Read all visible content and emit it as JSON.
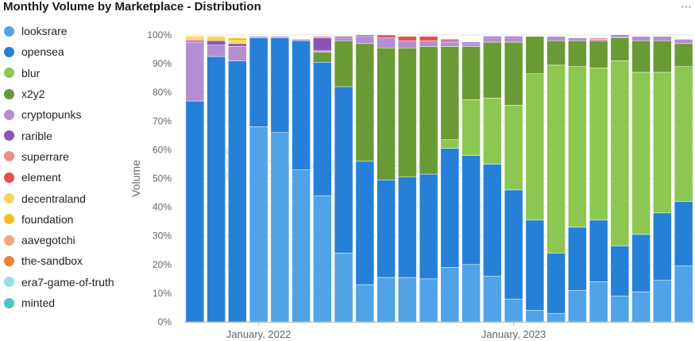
{
  "icons": {
    "more": "more-dots-icon"
  },
  "chart_data": {
    "type": "bar",
    "stacked": true,
    "normalized": true,
    "title": "Monthly Volume by Marketplace - Distribution",
    "ylabel": "Volume",
    "xlabel": "",
    "watermark": "Footprint Analytics",
    "ylim": [
      0,
      100
    ],
    "yticks": [
      "0%",
      "10%",
      "20%",
      "30%",
      "40%",
      "50%",
      "60%",
      "70%",
      "80%",
      "90%",
      "100%"
    ],
    "x_tick_labels": [
      {
        "label": "January, 2022",
        "index": 3
      },
      {
        "label": "January, 2023",
        "index": 15
      }
    ],
    "legend_position": "left",
    "series": [
      {
        "name": "looksrare",
        "color": "#4fa3e6",
        "values": [
          0,
          0,
          0,
          68,
          66,
          53,
          44,
          24,
          13,
          15.5,
          15.5,
          15,
          19,
          20,
          16,
          8,
          4,
          3,
          11,
          14,
          9,
          10.5,
          14.5,
          19.5
        ]
      },
      {
        "name": "opensea",
        "color": "#2680d8",
        "values": [
          77,
          92.5,
          91,
          31,
          33,
          45,
          46.5,
          58,
          43,
          34,
          35,
          36.5,
          41.5,
          38,
          39,
          38,
          31.5,
          21,
          22,
          21.5,
          17.5,
          20,
          23.5,
          22.5
        ]
      },
      {
        "name": "blur",
        "color": "#8cc751",
        "values": [
          0,
          0,
          0,
          0,
          0,
          0,
          0,
          0,
          0,
          0,
          0,
          0,
          3,
          19.5,
          23,
          29.5,
          51,
          65.5,
          56,
          53,
          64.5,
          56.5,
          49,
          47
        ]
      },
      {
        "name": "x2y2",
        "color": "#6a9a35",
        "values": [
          0,
          0,
          0,
          0,
          0,
          0,
          3.5,
          16,
          41,
          46,
          45,
          44.5,
          32.5,
          18.5,
          19.5,
          22,
          13,
          8.5,
          9,
          9.5,
          8,
          11,
          11,
          8
        ]
      },
      {
        "name": "cryptopunks",
        "color": "#b38ed2",
        "values": [
          20.5,
          4,
          5,
          0.5,
          0.5,
          0.5,
          0.5,
          1,
          2.5,
          3.5,
          2.5,
          2,
          1.5,
          1,
          1.5,
          1.5,
          0,
          1.5,
          1,
          0.5,
          0.5,
          1.5,
          1.5,
          1.5
        ]
      },
      {
        "name": "rarible",
        "color": "#8a55b8",
        "values": [
          0.5,
          1.5,
          1,
          0,
          0,
          0,
          4.5,
          0.5,
          0.5,
          0,
          0,
          0,
          0.5,
          0.5,
          0.5,
          0.5,
          0,
          0,
          0,
          0,
          0.5,
          0,
          0,
          0
        ]
      },
      {
        "name": "superrare",
        "color": "#f08c8c",
        "values": [
          0.5,
          0,
          0,
          0,
          0,
          0,
          0.5,
          0,
          0,
          0,
          0,
          0,
          0,
          0,
          0,
          0,
          0,
          0,
          0,
          0.5,
          0,
          0,
          0,
          0
        ]
      },
      {
        "name": "element",
        "color": "#e84c4c",
        "values": [
          0,
          0,
          0,
          0,
          0,
          0,
          0,
          0,
          0,
          1,
          1.5,
          1.5,
          0.5,
          0,
          0,
          0,
          0,
          0,
          0,
          0,
          0,
          0,
          0,
          0
        ]
      },
      {
        "name": "decentraland",
        "color": "#f7d35c",
        "values": [
          0.5,
          1,
          1,
          0,
          0,
          0,
          0,
          0,
          0,
          0,
          0,
          0,
          0,
          0,
          0,
          0,
          0,
          0,
          0,
          0,
          0,
          0,
          0,
          0
        ]
      },
      {
        "name": "foundation",
        "color": "#f5c022",
        "values": [
          0.5,
          0.5,
          1,
          0,
          0,
          0,
          0,
          0,
          0,
          0,
          0,
          0,
          0,
          0,
          0,
          0,
          0,
          0,
          0,
          0,
          0,
          0,
          0,
          0
        ]
      },
      {
        "name": "aavegotchi",
        "color": "#f2a878",
        "values": [
          0,
          0,
          0,
          0,
          0,
          0,
          0,
          0,
          0,
          0,
          0,
          0,
          0,
          0,
          0,
          0,
          0,
          0,
          0,
          0,
          0,
          0,
          0,
          0
        ]
      },
      {
        "name": "the-sandbox",
        "color": "#ee8430",
        "values": [
          0,
          0,
          0,
          0,
          0,
          0,
          0,
          0,
          0,
          0,
          0,
          0,
          0,
          0,
          0,
          0,
          0,
          0,
          0,
          0,
          0,
          0,
          0,
          0
        ]
      },
      {
        "name": "era7-game-of-truth",
        "color": "#9cdfe0",
        "values": [
          0,
          0,
          0,
          0,
          0,
          0,
          0,
          0,
          0,
          0,
          0,
          0,
          0,
          0,
          0,
          0,
          0,
          0,
          0,
          0,
          0,
          0,
          0,
          0
        ]
      },
      {
        "name": "minted",
        "color": "#4cc6c0",
        "values": [
          0,
          0,
          0,
          0,
          0,
          0,
          0,
          0,
          0,
          0,
          0,
          0,
          0,
          0,
          0,
          0,
          0,
          0,
          0,
          0,
          0,
          0,
          0,
          0
        ]
      }
    ]
  }
}
